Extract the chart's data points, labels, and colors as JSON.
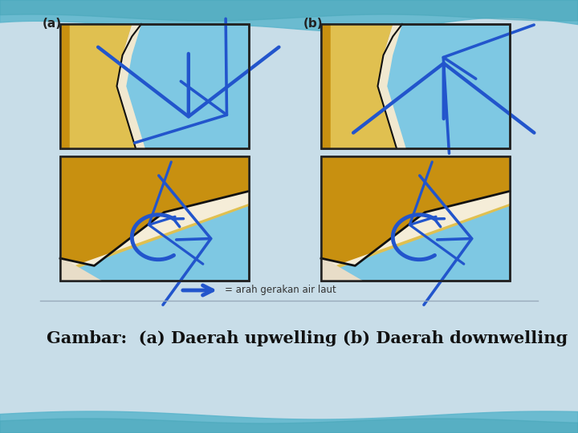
{
  "bg_color": "#c8dde8",
  "panel_ocean": "#7ec8e3",
  "panel_border": "#222222",
  "sand_dark": "#c8900a",
  "sand_mid": "#d4a830",
  "sand_light": "#e8cc70",
  "sand_pale": "#f0e0a0",
  "coast_pale": "#f0ead8",
  "arrow_color": "#1a3a99",
  "arrow_fill": "#2255cc",
  "legend_text": "= arah gerakan air laut",
  "caption": "Gambar:  (a) Daerah upwelling (b) Daerah downwelling",
  "label_a": "(a)",
  "label_b": "(b)",
  "caption_fontsize": 15
}
